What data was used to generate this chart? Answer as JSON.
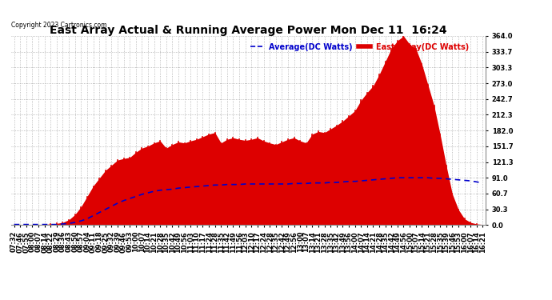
{
  "title": "East Array Actual & Running Average Power Mon Dec 11  16:24",
  "copyright": "Copyright 2023 Cartronics.com",
  "legend_avg": "Average(DC Watts)",
  "legend_east": "East Array(DC Watts)",
  "ymin": 0.0,
  "ymax": 364.0,
  "yticks": [
    0.0,
    30.3,
    60.7,
    91.0,
    121.3,
    151.7,
    182.0,
    212.3,
    242.7,
    273.0,
    303.3,
    333.7,
    364.0
  ],
  "background_color": "#ffffff",
  "plot_bg_color": "#ffffff",
  "bar_color": "#dd0000",
  "avg_color": "#0000cc",
  "grid_color": "#aaaaaa",
  "title_color": "#000000",
  "xtick_labels": [
    "07:32",
    "07:46",
    "07:55",
    "08:00",
    "08:07",
    "08:14",
    "08:22",
    "08:29",
    "08:36",
    "08:43",
    "08:50",
    "08:57",
    "09:04",
    "09:11",
    "09:18",
    "09:25",
    "09:32",
    "09:39",
    "09:46",
    "09:53",
    "10:00",
    "10:07",
    "10:14",
    "10:21",
    "10:28",
    "10:35",
    "10:42",
    "10:49",
    "10:56",
    "11:03",
    "11:10",
    "11:17",
    "11:24",
    "11:28",
    "11:35",
    "11:42",
    "11:49",
    "11:56",
    "12:03",
    "12:10",
    "12:17",
    "12:24",
    "12:28",
    "12:35",
    "12:42",
    "12:49",
    "12:56",
    "13:00",
    "13:07",
    "13:14",
    "13:21",
    "13:28",
    "13:35",
    "13:42",
    "13:49",
    "13:56",
    "14:00",
    "14:07",
    "14:14",
    "14:21",
    "14:28",
    "14:35",
    "14:42",
    "14:49",
    "14:56",
    "15:00",
    "15:07",
    "15:14",
    "15:21",
    "15:28",
    "15:35",
    "15:39",
    "15:46",
    "15:53",
    "16:00",
    "16:07",
    "16:14",
    "16:21"
  ],
  "power_values": [
    1,
    1,
    1,
    1,
    1,
    1,
    2,
    3,
    5,
    10,
    20,
    35,
    55,
    75,
    90,
    105,
    115,
    125,
    128,
    130,
    140,
    148,
    152,
    158,
    162,
    148,
    155,
    160,
    158,
    162,
    165,
    170,
    175,
    178,
    158,
    165,
    168,
    165,
    163,
    165,
    168,
    162,
    158,
    155,
    160,
    165,
    168,
    162,
    158,
    175,
    180,
    178,
    185,
    192,
    200,
    210,
    220,
    240,
    255,
    268,
    290,
    315,
    340,
    355,
    364,
    348,
    340,
    310,
    270,
    230,
    175,
    115,
    60,
    30,
    12,
    5,
    2,
    1
  ],
  "avg_values": [
    1,
    1,
    1,
    1,
    1,
    1,
    1,
    1,
    2,
    3,
    5,
    8,
    12,
    18,
    24,
    30,
    36,
    42,
    47,
    51,
    55,
    59,
    62,
    65,
    67,
    68,
    69,
    71,
    72,
    73,
    74,
    75,
    76,
    77,
    77,
    78,
    78,
    78,
    79,
    79,
    79,
    79,
    79,
    79,
    79,
    79,
    80,
    80,
    80,
    81,
    81,
    81,
    82,
    82,
    83,
    84,
    84,
    85,
    86,
    87,
    88,
    89,
    90,
    91,
    91,
    91,
    91,
    91,
    91,
    90,
    90,
    89,
    88,
    87,
    86,
    85,
    83,
    81
  ]
}
